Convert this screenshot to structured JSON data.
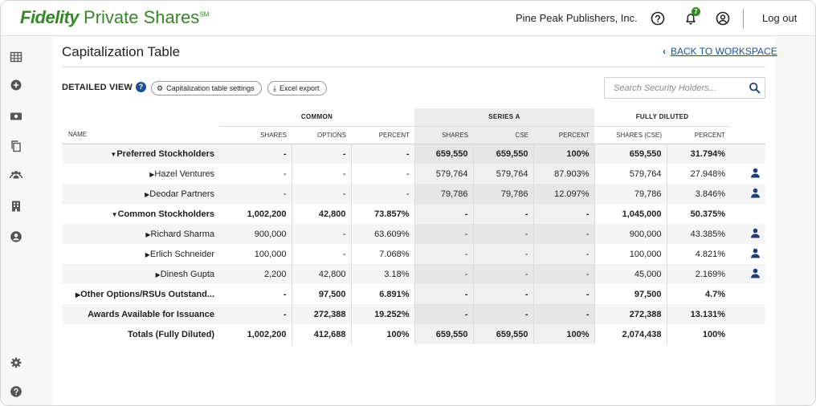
{
  "header": {
    "brand_main": "Fidelity",
    "brand_sub": "Private Shares",
    "brand_mark": "SM",
    "company": "Pine Peak Publishers, Inc.",
    "notifications_count": "7",
    "logout": "Log out"
  },
  "sidebar": {
    "items": [
      {
        "icon": "grid-icon"
      },
      {
        "icon": "add-circle-icon"
      },
      {
        "icon": "money-icon"
      },
      {
        "icon": "copy-icon"
      },
      {
        "icon": "people-icon"
      },
      {
        "icon": "building-icon"
      },
      {
        "icon": "account-icon"
      }
    ],
    "bottom": [
      {
        "icon": "gear-icon"
      },
      {
        "icon": "help-icon"
      }
    ]
  },
  "page": {
    "title": "Capitalization Table",
    "back_link": "BACK TO WORKSPACE",
    "view_label": "DETAILED VIEW",
    "help": "?",
    "settings_button": "Capitalization table settings",
    "excel_button": "Excel export",
    "search_placeholder": "Search Security Holders..."
  },
  "table": {
    "groups": {
      "common": "COMMON",
      "series_a": "SERIES A",
      "fully_diluted": "FULLY DILUTED"
    },
    "columns": [
      "NAME",
      "SHARES",
      "OPTIONS",
      "PERCENT",
      "SHARES",
      "CSE",
      "PERCENT",
      "SHARES (CSE)",
      "PERCENT"
    ],
    "rows": [
      {
        "name": "Preferred Stockholders",
        "type": "group",
        "expanded": true,
        "values": [
          "-",
          "-",
          "-",
          "659,550",
          "659,550",
          "100%",
          "659,550",
          "31.794%"
        ],
        "user": false
      },
      {
        "name": "Hazel Ventures",
        "type": "child",
        "expanded": false,
        "values": [
          "-",
          "-",
          "-",
          "579,764",
          "579,764",
          "87.903%",
          "579,764",
          "27.948%"
        ],
        "user": true
      },
      {
        "name": "Deodar Partners",
        "type": "child",
        "expanded": false,
        "values": [
          "-",
          "-",
          "-",
          "79,786",
          "79,786",
          "12.097%",
          "79,786",
          "3.846%"
        ],
        "user": true
      },
      {
        "name": "Common Stockholders",
        "type": "group",
        "expanded": true,
        "values": [
          "1,002,200",
          "42,800",
          "73.857%",
          "-",
          "-",
          "-",
          "1,045,000",
          "50.375%"
        ],
        "user": false
      },
      {
        "name": "Richard Sharma",
        "type": "child",
        "expanded": false,
        "values": [
          "900,000",
          "-",
          "63.609%",
          "-",
          "-",
          "-",
          "900,000",
          "43.385%"
        ],
        "user": true
      },
      {
        "name": "Erlich Schneider",
        "type": "child",
        "expanded": false,
        "values": [
          "100,000",
          "-",
          "7.068%",
          "-",
          "-",
          "-",
          "100,000",
          "4.821%"
        ],
        "user": true
      },
      {
        "name": "Dinesh Gupta",
        "type": "child",
        "expanded": false,
        "values": [
          "2,200",
          "42,800",
          "3.18%",
          "-",
          "-",
          "-",
          "45,000",
          "2.169%"
        ],
        "user": true
      },
      {
        "name": "Other Options/RSUs Outstand...",
        "type": "group",
        "expanded": false,
        "values": [
          "-",
          "97,500",
          "6.891%",
          "-",
          "-",
          "-",
          "97,500",
          "4.7%"
        ],
        "user": false
      },
      {
        "name": "Awards Available for Issuance",
        "type": "plain",
        "expanded": false,
        "values": [
          "-",
          "272,388",
          "19.252%",
          "-",
          "-",
          "-",
          "272,388",
          "13.131%"
        ],
        "user": false
      },
      {
        "name": "Totals (Fully Diluted)",
        "type": "plain",
        "expanded": false,
        "values": [
          "1,002,200",
          "412,688",
          "100%",
          "659,550",
          "659,550",
          "100%",
          "2,074,438",
          "100%"
        ],
        "user": false
      }
    ]
  },
  "colors": {
    "brand_green": "#368727",
    "link_blue": "#1f4f96",
    "user_icon": "#1f3f7a"
  }
}
